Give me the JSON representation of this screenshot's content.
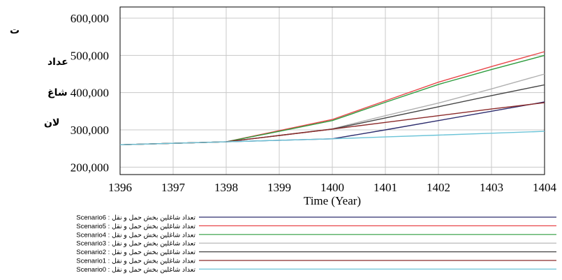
{
  "chart_data": {
    "type": "line",
    "xlabel": "Time (Year)",
    "ylabel_fragments": [
      "ت",
      "عداد",
      "شاغ",
      "لان"
    ],
    "x": [
      1396,
      1397,
      1398,
      1399,
      1400,
      1401,
      1402,
      1403,
      1404
    ],
    "x_ticks": [
      "1396",
      "1397",
      "1398",
      "1399",
      "1400",
      "1401",
      "1402",
      "1403",
      "1404"
    ],
    "y_ticks": [
      "200,000",
      "300,000",
      "400,000",
      "500,000",
      "600,000"
    ],
    "ylim": [
      180000,
      630000
    ],
    "grid": true,
    "legend_placement": "bottom",
    "series": [
      {
        "name": "Scenario6 : تعداد شاغلین بخش حمل و نقل",
        "color": "#2d2d6e",
        "values": [
          260000,
          264000,
          268000,
          272000,
          276000,
          300000,
          325000,
          350000,
          375000
        ]
      },
      {
        "name": "Scenario5 : تعداد شاغلین بخش حمل و نقل",
        "color": "#e8474a",
        "values": [
          260000,
          264000,
          268000,
          298000,
          328000,
          378000,
          428000,
          470000,
          510000
        ]
      },
      {
        "name": "Scenario4 : تعداد شاغلین بخش حمل و نقل",
        "color": "#2e9c3e",
        "values": [
          260000,
          264000,
          268000,
          296000,
          325000,
          374000,
          422000,
          462000,
          500000
        ]
      },
      {
        "name": "Scenario3 : تعداد شاغلین بخش حمل و نقل",
        "color": "#b0b0b0",
        "values": [
          260000,
          264000,
          268000,
          285000,
          303000,
          338000,
          372000,
          410000,
          450000
        ]
      },
      {
        "name": "Scenario2 : تعداد شاغلین بخش حمل و نقل",
        "color": "#444444",
        "values": [
          260000,
          264000,
          268000,
          285000,
          302000,
          332000,
          362000,
          392000,
          421000
        ]
      },
      {
        "name": "Scenario1 : تعداد شاغلین بخش حمل و نقل",
        "color": "#8b2a2a",
        "values": [
          260000,
          264000,
          268000,
          285000,
          302000,
          320000,
          338000,
          356000,
          373000
        ]
      },
      {
        "name": "Scenario0 : تعداد شاغلین بخش حمل و نقل",
        "color": "#6cc4d8",
        "values": [
          260000,
          264000,
          268000,
          272000,
          276000,
          281000,
          286000,
          291000,
          296000
        ]
      }
    ]
  }
}
